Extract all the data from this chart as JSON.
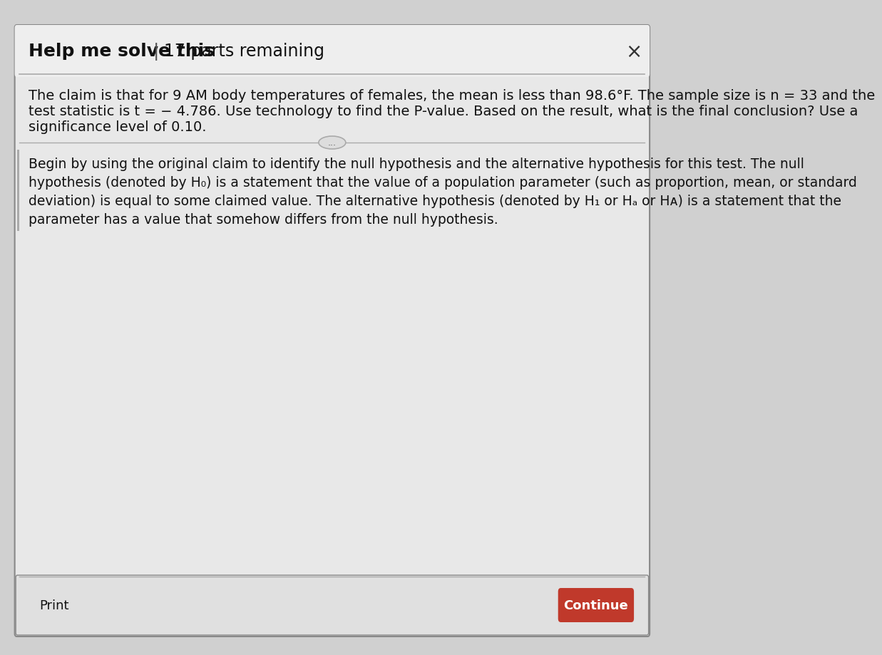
{
  "bg_color": "#d0d0d0",
  "panel_color": "#e8e8e8",
  "panel_border_color": "#888888",
  "header_text": "Help me solve this",
  "header_separator": "|",
  "header_parts": "17 parts remaining",
  "close_symbol": "×",
  "header_divider_color": "#aaaaaa",
  "body_bg": "#e8e8e8",
  "bottom_panel_bg": "#e0e0e0",
  "bottom_border_color": "#888888",
  "print_text": "Print",
  "continue_text": "Continue",
  "continue_bg": "#c0392b",
  "continue_text_color": "#ffffff",
  "ellipsis_button_color": "#dddddd",
  "ellipsis_border_color": "#aaaaaa",
  "main_paragraph": "The claim is that for 9 AM body temperatures of females, the mean is less than 98.6°F. The sample size is n = 33 and the\ntest statistic is t = − 4.786. Use technology to find the P-value. Based on the result, what is the final conclusion? Use a\nsignificance level of 0.10.",
  "instruction_lines": [
    "Begin by using the original claim to identify the null hypothesis and the alternative hypothesis for this test. The null",
    "hypothesis (denoted by H₀) is a statement that the value of a population parameter (such as proportion, mean, or standard",
    "deviation) is equal to some claimed value. The alternative hypothesis (denoted by H₁ or Hₐ or Hᴀ) is a statement that the",
    "parameter has a value that somehow differs from the null hypothesis."
  ],
  "font_size_header": 18,
  "font_size_body": 14,
  "font_size_instruction": 13.5,
  "font_size_print": 13,
  "font_size_continue": 13
}
